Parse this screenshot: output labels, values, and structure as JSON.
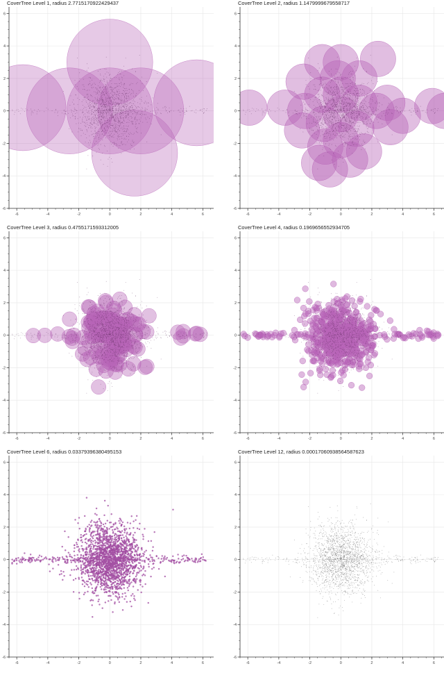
{
  "chart_data": [
    {
      "type": "scatter",
      "title": "CoverTree Level 1, radius 2.7715170922429437",
      "xlim": [
        -6.5,
        6.7
      ],
      "ylim": [
        -6,
        6.4
      ],
      "xticks": [
        -6,
        -4,
        -2,
        0,
        2,
        4,
        6
      ],
      "yticks": [
        -6,
        -4,
        -2,
        0,
        2,
        4,
        6
      ],
      "grid": true,
      "radius": 2.7715170922429437,
      "circle_color": "#b764b7",
      "centers": [
        [
          -5.6,
          0.2
        ],
        [
          -2.6,
          0.0
        ],
        [
          0.0,
          0.0
        ],
        [
          0.0,
          3.0
        ],
        [
          2.0,
          0.0
        ],
        [
          5.6,
          0.5
        ],
        [
          1.6,
          -2.6
        ]
      ],
      "points_style": "dark",
      "points_n": 1600
    },
    {
      "type": "scatter",
      "title": "CoverTree Level 2, radius 1.1479999679558717",
      "xlim": [
        -6.5,
        6.7
      ],
      "ylim": [
        -6,
        6.4
      ],
      "xticks": [
        -6,
        -4,
        -2,
        0,
        2,
        4,
        6
      ],
      "yticks": [
        -6,
        -4,
        -2,
        0,
        2,
        4,
        6
      ],
      "grid": true,
      "radius": 1.1479999679558717,
      "circle_color": "#b764b7",
      "centers": [
        [
          -5.9,
          0.2
        ],
        [
          -3.6,
          0.2
        ],
        [
          -2.4,
          1.8
        ],
        [
          -1.2,
          3.0
        ],
        [
          0.0,
          3.0
        ],
        [
          1.2,
          2.0
        ],
        [
          2.4,
          3.2
        ],
        [
          -1.2,
          1.0
        ],
        [
          0.0,
          1.0
        ],
        [
          1.2,
          0.5
        ],
        [
          2.3,
          0.0
        ],
        [
          -2.3,
          0.0
        ],
        [
          -1.1,
          -0.8
        ],
        [
          0.0,
          -0.2
        ],
        [
          1.0,
          -1.1
        ],
        [
          3.0,
          0.5
        ],
        [
          4.0,
          -0.3
        ],
        [
          -2.5,
          -1.2
        ],
        [
          -1.0,
          -2.2
        ],
        [
          0.0,
          -1.8
        ],
        [
          1.5,
          -2.5
        ],
        [
          -1.4,
          -3.2
        ],
        [
          0.6,
          -3.0
        ],
        [
          -0.7,
          -3.6
        ],
        [
          5.9,
          0.3
        ],
        [
          6.7,
          0.0
        ],
        [
          3.2,
          -1.0
        ],
        [
          -0.2,
          2.0
        ]
      ],
      "points_style": "dark",
      "points_n": 1600
    },
    {
      "type": "scatter",
      "title": "CoverTree Level 3, radius 0.4755171593312005",
      "xlim": [
        -6.5,
        6.7
      ],
      "ylim": [
        -6,
        6.4
      ],
      "xticks": [
        -6,
        -4,
        -2,
        0,
        2,
        4,
        6
      ],
      "yticks": [
        -6,
        -4,
        -2,
        0,
        2,
        4,
        6
      ],
      "grid": true,
      "radius": 0.4755171593312005,
      "circle_color": "#b764b7",
      "centers_generated": 150,
      "points_style": "dark",
      "points_n": 1600
    },
    {
      "type": "scatter",
      "title": "CoverTree Level 4, radius 0.1969656552934705",
      "xlim": [
        -6.5,
        6.7
      ],
      "ylim": [
        -6,
        6.4
      ],
      "xticks": [
        -6,
        -4,
        -2,
        0,
        2,
        4,
        6
      ],
      "yticks": [
        -6,
        -4,
        -2,
        0,
        2,
        4,
        6
      ],
      "grid": true,
      "radius": 0.1969656552934705,
      "circle_color": "#b764b7",
      "centers_generated": 700,
      "points_style": "dark",
      "points_n": 1200
    },
    {
      "type": "scatter",
      "title": "CoverTree Level 6, radius 0.03379396380495153",
      "xlim": [
        -6.5,
        6.7
      ],
      "ylim": [
        -6,
        6.4
      ],
      "xticks": [
        -6,
        -4,
        -2,
        0,
        2,
        4,
        6
      ],
      "yticks": [
        -6,
        -4,
        -2,
        0,
        2,
        4,
        6
      ],
      "grid": true,
      "radius": 0.03379396380495153,
      "circle_color": "#a24da2",
      "centers_generated": 2200,
      "points_style": "none",
      "points_n": 0
    },
    {
      "type": "scatter",
      "title": "CoverTree Level 12, radius 0.00017060938564587623",
      "xlim": [
        -6.5,
        6.7
      ],
      "ylim": [
        -6,
        6.4
      ],
      "xticks": [
        -6,
        -4,
        -2,
        0,
        2,
        4,
        6
      ],
      "yticks": [
        -6,
        -4,
        -2,
        0,
        2,
        4,
        6
      ],
      "grid": true,
      "radius": 0.00017060938564587624,
      "circle_color": "#666666",
      "centers_generated": 0,
      "points_style": "gray",
      "points_n": 2200
    }
  ]
}
